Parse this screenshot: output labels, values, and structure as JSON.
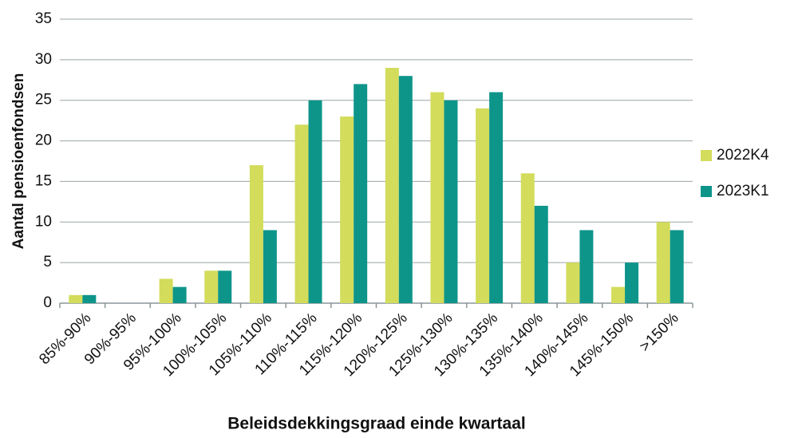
{
  "chart_data": {
    "type": "bar",
    "y_label": "Aantal pensioenfondsen",
    "x_label": "Beleidsdekkingsgraad  einde kwartaal",
    "categories": [
      "85%-90%",
      "90%-95%",
      "95%-100%",
      "100%-105%",
      "105%-110%",
      "110%-115%",
      "115%-120%",
      "120%-125%",
      "125%-130%",
      "130%-135%",
      "135%-140%",
      "140%-145%",
      "145%-150%",
      ">150%"
    ],
    "series": [
      {
        "name": "2022K4",
        "color": "#d3dc5b",
        "values": [
          1,
          0,
          3,
          4,
          17,
          22,
          23,
          29,
          26,
          24,
          16,
          5,
          2,
          10
        ]
      },
      {
        "name": "2023K1",
        "color": "#0e958a",
        "values": [
          1,
          0,
          2,
          4,
          9,
          25,
          27,
          28,
          25,
          26,
          12,
          9,
          5,
          9
        ]
      }
    ],
    "ylim": [
      0,
      35
    ],
    "yticks": [
      0,
      5,
      10,
      15,
      20,
      25,
      30,
      35
    ],
    "grid": true,
    "legend": "right"
  }
}
